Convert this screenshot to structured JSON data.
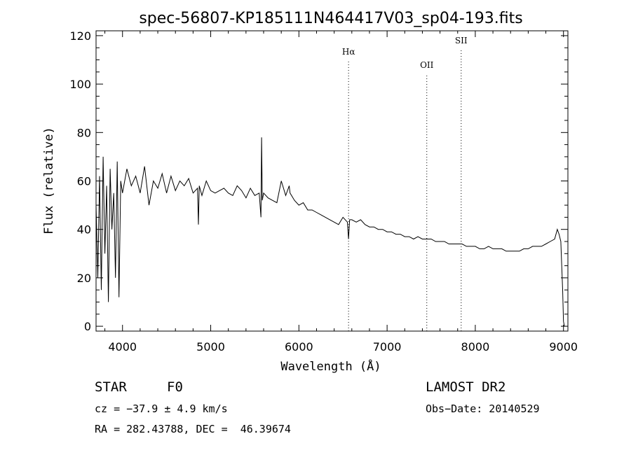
{
  "chart_data": {
    "type": "line",
    "title": "spec-56807-KP185111N464417V03_sp04-193.fits",
    "xlabel": "Wavelength (Å)",
    "ylabel": "Flux (relative)",
    "xlim": [
      3700,
      9050
    ],
    "ylim": [
      -2,
      122
    ],
    "xticks": [
      4000,
      5000,
      6000,
      7000,
      8000,
      9000
    ],
    "yticks": [
      0,
      20,
      40,
      60,
      80,
      100,
      120
    ],
    "grid": false,
    "line_color": "#000000",
    "lines": [
      {
        "label": "Hα",
        "x": 6563
      },
      {
        "label": "OII",
        "x": 7450
      },
      {
        "label": "SII",
        "x": 7840
      }
    ],
    "series": [
      {
        "x": [
          3700,
          3720,
          3740,
          3760,
          3780,
          3800,
          3820,
          3840,
          3860,
          3880,
          3900,
          3920,
          3940,
          3960,
          3980,
          4000,
          4050,
          4100,
          4150,
          4200,
          4250,
          4300,
          4350,
          4400,
          4450,
          4500,
          4550,
          4600,
          4650,
          4700,
          4750,
          4800,
          4850,
          4861,
          4870,
          4900,
          4950,
          5000,
          5050,
          5100,
          5150,
          5200,
          5250,
          5300,
          5350,
          5400,
          5450,
          5500,
          5550,
          5570,
          5577,
          5585,
          5600,
          5650,
          5700,
          5750,
          5800,
          5850,
          5890,
          5900,
          5950,
          6000,
          6050,
          6100,
          6150,
          6200,
          6250,
          6300,
          6350,
          6400,
          6450,
          6500,
          6550,
          6563,
          6575,
          6600,
          6650,
          6700,
          6750,
          6800,
          6850,
          6900,
          6950,
          7000,
          7050,
          7100,
          7150,
          7200,
          7250,
          7300,
          7350,
          7400,
          7450,
          7500,
          7550,
          7600,
          7650,
          7700,
          7750,
          7800,
          7850,
          7900,
          7950,
          8000,
          8050,
          8100,
          8150,
          8200,
          8250,
          8300,
          8350,
          8400,
          8450,
          8500,
          8550,
          8600,
          8650,
          8700,
          8750,
          8800,
          8850,
          8900,
          8930,
          8950,
          8970,
          8990,
          9000,
          9010
        ],
        "y": [
          50,
          20,
          62,
          15,
          70,
          30,
          58,
          10,
          65,
          40,
          55,
          20,
          68,
          12,
          60,
          55,
          65,
          58,
          62,
          55,
          66,
          50,
          60,
          57,
          63,
          55,
          62,
          56,
          60,
          58,
          61,
          55,
          57,
          42,
          58,
          54,
          60,
          56,
          55,
          56,
          57,
          55,
          54,
          58,
          56,
          53,
          57,
          54,
          55,
          45,
          78,
          52,
          55,
          53,
          52,
          51,
          60,
          54,
          58,
          55,
          52,
          50,
          51,
          48,
          48,
          47,
          46,
          45,
          44,
          43,
          42,
          45,
          43,
          36,
          44,
          44,
          43,
          44,
          42,
          41,
          41,
          40,
          40,
          39,
          39,
          38,
          38,
          37,
          37,
          36,
          37,
          36,
          36,
          36,
          35,
          35,
          35,
          34,
          34,
          34,
          34,
          33,
          33,
          33,
          32,
          32,
          33,
          32,
          32,
          32,
          31,
          31,
          31,
          31,
          32,
          32,
          33,
          33,
          33,
          34,
          35,
          36,
          40,
          38,
          35,
          15,
          2,
          0
        ]
      }
    ]
  },
  "info": {
    "star_type": "STAR",
    "subclass": "F0",
    "cz_line": "cz = −37.9 ± 4.9 km/s",
    "radec_line": "RA = 282.43788, DEC =  46.39674",
    "survey": "LAMOST DR2",
    "obs_date_line": "Obs−Date: 20140529"
  }
}
